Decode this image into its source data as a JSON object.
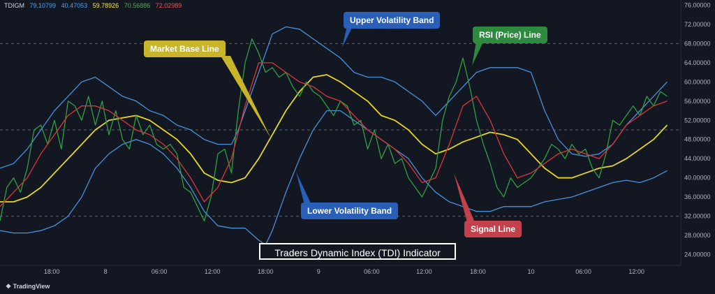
{
  "legend": {
    "symbol": "TDIGM",
    "values": [
      {
        "value": "79.10799",
        "color": "#42a5f5"
      },
      {
        "value": "40.47053",
        "color": "#42a5f5"
      },
      {
        "value": "59.78926",
        "color": "#ffeb3b"
      },
      {
        "value": "70.56886",
        "color": "#4caf50"
      },
      {
        "value": "72.02989",
        "color": "#ef5350"
      }
    ]
  },
  "callouts": {
    "upper_band": "Upper Volatility Band",
    "market_base": "Market Base Line",
    "rsi_line": "RSI (Price) Line",
    "lower_band": "Lower Volatility Band",
    "signal_line": "Signal Line"
  },
  "title": "Traders Dynamic Index (TDI) Indicator",
  "brand": "TradingView",
  "chart_data": {
    "type": "line",
    "ylim": [
      24,
      76
    ],
    "y_ticks": [
      "24.00000",
      "28.00000",
      "32.00000",
      "36.00000",
      "40.00000",
      "44.00000",
      "48.00000",
      "52.00000",
      "56.00000",
      "60.00000",
      "64.00000",
      "68.00000",
      "72.00000",
      "76.00000"
    ],
    "x_ticks": [
      {
        "label": "18:00",
        "t": 0.076
      },
      {
        "label": "8",
        "t": 0.155
      },
      {
        "label": "06:00",
        "t": 0.234
      },
      {
        "label": "12:00",
        "t": 0.312
      },
      {
        "label": "18:00",
        "t": 0.39
      },
      {
        "label": "9",
        "t": 0.468
      },
      {
        "label": "06:00",
        "t": 0.546
      },
      {
        "label": "12:00",
        "t": 0.623
      },
      {
        "label": "18:00",
        "t": 0.702
      },
      {
        "label": "10",
        "t": 0.78
      },
      {
        "label": "06:00",
        "t": 0.857
      },
      {
        "label": "12:00",
        "t": 0.935
      }
    ],
    "reference_levels": [
      68,
      50,
      32
    ],
    "series": [
      {
        "key": "upper",
        "color": "#4a90d9",
        "points": [
          [
            0,
            42
          ],
          [
            0.02,
            43
          ],
          [
            0.04,
            46
          ],
          [
            0.06,
            50
          ],
          [
            0.08,
            54
          ],
          [
            0.1,
            57
          ],
          [
            0.12,
            60
          ],
          [
            0.14,
            61
          ],
          [
            0.16,
            59
          ],
          [
            0.18,
            57
          ],
          [
            0.2,
            56
          ],
          [
            0.22,
            54
          ],
          [
            0.24,
            53
          ],
          [
            0.26,
            51
          ],
          [
            0.28,
            50
          ],
          [
            0.3,
            48
          ],
          [
            0.32,
            47
          ],
          [
            0.34,
            47
          ],
          [
            0.35,
            50
          ],
          [
            0.37,
            58
          ],
          [
            0.39,
            66
          ],
          [
            0.4,
            70
          ],
          [
            0.42,
            71.5
          ],
          [
            0.44,
            71
          ],
          [
            0.46,
            69
          ],
          [
            0.48,
            67
          ],
          [
            0.5,
            65
          ],
          [
            0.52,
            62
          ],
          [
            0.54,
            61
          ],
          [
            0.56,
            61
          ],
          [
            0.58,
            60
          ],
          [
            0.6,
            58
          ],
          [
            0.62,
            56
          ],
          [
            0.64,
            53
          ],
          [
            0.66,
            56
          ],
          [
            0.68,
            59
          ],
          [
            0.7,
            62
          ],
          [
            0.72,
            63
          ],
          [
            0.74,
            63
          ],
          [
            0.76,
            63
          ],
          [
            0.78,
            62
          ],
          [
            0.8,
            54
          ],
          [
            0.82,
            48
          ],
          [
            0.84,
            45
          ],
          [
            0.86,
            44.5
          ],
          [
            0.88,
            45
          ],
          [
            0.9,
            47
          ],
          [
            0.92,
            51
          ],
          [
            0.94,
            54
          ],
          [
            0.96,
            57
          ],
          [
            0.98,
            60
          ]
        ]
      },
      {
        "key": "lower",
        "color": "#4a90d9",
        "points": [
          [
            0,
            29
          ],
          [
            0.02,
            28.5
          ],
          [
            0.04,
            28.5
          ],
          [
            0.06,
            29
          ],
          [
            0.08,
            30
          ],
          [
            0.1,
            32
          ],
          [
            0.12,
            36
          ],
          [
            0.14,
            42
          ],
          [
            0.16,
            45
          ],
          [
            0.18,
            47
          ],
          [
            0.2,
            48
          ],
          [
            0.22,
            47
          ],
          [
            0.24,
            45
          ],
          [
            0.26,
            42
          ],
          [
            0.28,
            38
          ],
          [
            0.3,
            33
          ],
          [
            0.32,
            30
          ],
          [
            0.34,
            29.5
          ],
          [
            0.36,
            29.5
          ],
          [
            0.38,
            27
          ],
          [
            0.39,
            26
          ],
          [
            0.4,
            29
          ],
          [
            0.42,
            37
          ],
          [
            0.44,
            44
          ],
          [
            0.46,
            50
          ],
          [
            0.48,
            54
          ],
          [
            0.5,
            54
          ],
          [
            0.52,
            52
          ],
          [
            0.54,
            50
          ],
          [
            0.56,
            48
          ],
          [
            0.58,
            46
          ],
          [
            0.6,
            44
          ],
          [
            0.62,
            40
          ],
          [
            0.64,
            37
          ],
          [
            0.66,
            35
          ],
          [
            0.68,
            34
          ],
          [
            0.7,
            33
          ],
          [
            0.72,
            33
          ],
          [
            0.74,
            34
          ],
          [
            0.76,
            34
          ],
          [
            0.78,
            34
          ],
          [
            0.8,
            35
          ],
          [
            0.82,
            35.5
          ],
          [
            0.84,
            36
          ],
          [
            0.86,
            37
          ],
          [
            0.88,
            38
          ],
          [
            0.9,
            39
          ],
          [
            0.92,
            39.5
          ],
          [
            0.94,
            39
          ],
          [
            0.96,
            40
          ],
          [
            0.98,
            41.5
          ]
        ]
      },
      {
        "key": "base",
        "color": "#e6d81e",
        "points": [
          [
            0,
            35
          ],
          [
            0.02,
            35
          ],
          [
            0.04,
            36
          ],
          [
            0.06,
            38
          ],
          [
            0.08,
            41
          ],
          [
            0.1,
            44
          ],
          [
            0.12,
            47
          ],
          [
            0.14,
            50
          ],
          [
            0.16,
            52
          ],
          [
            0.18,
            52.5
          ],
          [
            0.2,
            53
          ],
          [
            0.22,
            52
          ],
          [
            0.24,
            50
          ],
          [
            0.26,
            48
          ],
          [
            0.28,
            45
          ],
          [
            0.3,
            41
          ],
          [
            0.32,
            39.5
          ],
          [
            0.34,
            39
          ],
          [
            0.36,
            40
          ],
          [
            0.38,
            44
          ],
          [
            0.4,
            49
          ],
          [
            0.42,
            54
          ],
          [
            0.44,
            58
          ],
          [
            0.46,
            61
          ],
          [
            0.48,
            61.5
          ],
          [
            0.5,
            60
          ],
          [
            0.52,
            58
          ],
          [
            0.54,
            56
          ],
          [
            0.56,
            53
          ],
          [
            0.58,
            52
          ],
          [
            0.6,
            50
          ],
          [
            0.62,
            47
          ],
          [
            0.64,
            45
          ],
          [
            0.66,
            46
          ],
          [
            0.68,
            47.5
          ],
          [
            0.7,
            48.5
          ],
          [
            0.72,
            49.5
          ],
          [
            0.74,
            49
          ],
          [
            0.76,
            48
          ],
          [
            0.78,
            45
          ],
          [
            0.8,
            42
          ],
          [
            0.82,
            40
          ],
          [
            0.84,
            40
          ],
          [
            0.86,
            41
          ],
          [
            0.88,
            42
          ],
          [
            0.9,
            42.5
          ],
          [
            0.92,
            44
          ],
          [
            0.94,
            46
          ],
          [
            0.96,
            48
          ],
          [
            0.98,
            51
          ]
        ]
      },
      {
        "key": "rsi",
        "color": "#2ea043",
        "points": [
          [
            0,
            31
          ],
          [
            0.01,
            38
          ],
          [
            0.02,
            40
          ],
          [
            0.03,
            37
          ],
          [
            0.04,
            42
          ],
          [
            0.05,
            50
          ],
          [
            0.06,
            51
          ],
          [
            0.07,
            47
          ],
          [
            0.08,
            52
          ],
          [
            0.09,
            46
          ],
          [
            0.1,
            56
          ],
          [
            0.11,
            55
          ],
          [
            0.12,
            52
          ],
          [
            0.13,
            57
          ],
          [
            0.14,
            51
          ],
          [
            0.15,
            56
          ],
          [
            0.16,
            49
          ],
          [
            0.17,
            54
          ],
          [
            0.18,
            48
          ],
          [
            0.19,
            46
          ],
          [
            0.2,
            53
          ],
          [
            0.21,
            49
          ],
          [
            0.22,
            51
          ],
          [
            0.23,
            47
          ],
          [
            0.24,
            46
          ],
          [
            0.25,
            47
          ],
          [
            0.26,
            45
          ],
          [
            0.27,
            38
          ],
          [
            0.28,
            37
          ],
          [
            0.29,
            34
          ],
          [
            0.3,
            31
          ],
          [
            0.31,
            36
          ],
          [
            0.32,
            45
          ],
          [
            0.33,
            46
          ],
          [
            0.34,
            41
          ],
          [
            0.35,
            54
          ],
          [
            0.36,
            64
          ],
          [
            0.37,
            69
          ],
          [
            0.38,
            66
          ],
          [
            0.39,
            62
          ],
          [
            0.4,
            63
          ],
          [
            0.41,
            61
          ],
          [
            0.42,
            62
          ],
          [
            0.43,
            59
          ],
          [
            0.44,
            57
          ],
          [
            0.45,
            60
          ],
          [
            0.46,
            58
          ],
          [
            0.47,
            57
          ],
          [
            0.48,
            55
          ],
          [
            0.49,
            53
          ],
          [
            0.5,
            56
          ],
          [
            0.51,
            55
          ],
          [
            0.52,
            51
          ],
          [
            0.53,
            52
          ],
          [
            0.54,
            46
          ],
          [
            0.55,
            50
          ],
          [
            0.56,
            44
          ],
          [
            0.57,
            47
          ],
          [
            0.58,
            43
          ],
          [
            0.59,
            44
          ],
          [
            0.6,
            40
          ],
          [
            0.61,
            38
          ],
          [
            0.62,
            36
          ],
          [
            0.63,
            39
          ],
          [
            0.64,
            42
          ],
          [
            0.65,
            52
          ],
          [
            0.66,
            57
          ],
          [
            0.67,
            60
          ],
          [
            0.68,
            65
          ],
          [
            0.69,
            59
          ],
          [
            0.7,
            52
          ],
          [
            0.71,
            47
          ],
          [
            0.72,
            43
          ],
          [
            0.73,
            38
          ],
          [
            0.74,
            36
          ],
          [
            0.75,
            40
          ],
          [
            0.76,
            38
          ],
          [
            0.77,
            39
          ],
          [
            0.78,
            40
          ],
          [
            0.79,
            42
          ],
          [
            0.8,
            44
          ],
          [
            0.81,
            47
          ],
          [
            0.82,
            46
          ],
          [
            0.83,
            44
          ],
          [
            0.84,
            47
          ],
          [
            0.85,
            45
          ],
          [
            0.86,
            46
          ],
          [
            0.87,
            42
          ],
          [
            0.88,
            40
          ],
          [
            0.89,
            45
          ],
          [
            0.9,
            52
          ],
          [
            0.91,
            51
          ],
          [
            0.92,
            53
          ],
          [
            0.93,
            55
          ],
          [
            0.94,
            53
          ],
          [
            0.95,
            57
          ],
          [
            0.96,
            55
          ],
          [
            0.97,
            58
          ],
          [
            0.98,
            57
          ]
        ]
      },
      {
        "key": "signal",
        "color": "#d9383a",
        "points": [
          [
            0,
            34
          ],
          [
            0.02,
            37
          ],
          [
            0.04,
            40
          ],
          [
            0.06,
            45
          ],
          [
            0.08,
            49
          ],
          [
            0.1,
            53
          ],
          [
            0.12,
            55
          ],
          [
            0.14,
            55
          ],
          [
            0.16,
            54
          ],
          [
            0.18,
            52
          ],
          [
            0.2,
            50
          ],
          [
            0.22,
            49
          ],
          [
            0.24,
            47
          ],
          [
            0.26,
            44
          ],
          [
            0.28,
            40
          ],
          [
            0.3,
            35
          ],
          [
            0.32,
            38
          ],
          [
            0.34,
            44
          ],
          [
            0.36,
            55
          ],
          [
            0.38,
            64
          ],
          [
            0.4,
            64
          ],
          [
            0.42,
            62
          ],
          [
            0.44,
            60
          ],
          [
            0.46,
            59
          ],
          [
            0.48,
            57
          ],
          [
            0.5,
            56
          ],
          [
            0.52,
            53
          ],
          [
            0.54,
            50
          ],
          [
            0.56,
            48
          ],
          [
            0.58,
            46
          ],
          [
            0.6,
            43
          ],
          [
            0.62,
            39
          ],
          [
            0.64,
            40
          ],
          [
            0.66,
            47
          ],
          [
            0.68,
            55
          ],
          [
            0.7,
            57
          ],
          [
            0.72,
            52
          ],
          [
            0.74,
            45
          ],
          [
            0.76,
            40
          ],
          [
            0.78,
            41
          ],
          [
            0.8,
            43
          ],
          [
            0.82,
            45
          ],
          [
            0.84,
            46
          ],
          [
            0.86,
            45
          ],
          [
            0.88,
            44
          ],
          [
            0.9,
            47
          ],
          [
            0.92,
            51
          ],
          [
            0.94,
            53
          ],
          [
            0.96,
            55
          ],
          [
            0.98,
            56
          ]
        ]
      }
    ]
  }
}
